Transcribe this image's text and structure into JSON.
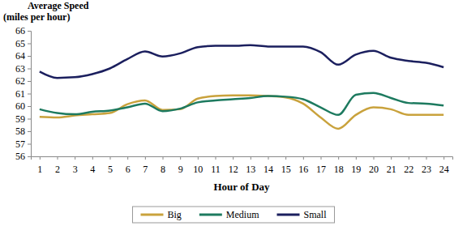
{
  "chart_data": {
    "type": "line",
    "x_label": "Hour of Day",
    "y_label": "Average Speed\n(miles per hour)",
    "categories": [
      "1",
      "2",
      "3",
      "4",
      "5",
      "6",
      "7",
      "8",
      "9",
      "10",
      "11",
      "12",
      "13",
      "14",
      "15",
      "16",
      "17",
      "18",
      "19",
      "20",
      "21",
      "22",
      "23",
      "24"
    ],
    "series": [
      {
        "name": "Big",
        "color": "#c9a23c",
        "values": [
          59.15,
          59.1,
          59.25,
          59.35,
          59.45,
          60.15,
          60.45,
          59.7,
          59.75,
          60.6,
          60.8,
          60.85,
          60.85,
          60.8,
          60.7,
          60.2,
          59.1,
          58.2,
          59.3,
          59.9,
          59.75,
          59.3,
          59.3,
          59.3
        ]
      },
      {
        "name": "Medium",
        "color": "#1d7a5f",
        "values": [
          59.75,
          59.45,
          59.35,
          59.55,
          59.65,
          59.9,
          60.2,
          59.6,
          59.8,
          60.3,
          60.45,
          60.55,
          60.65,
          60.8,
          60.75,
          60.55,
          59.9,
          59.3,
          60.9,
          61.05,
          60.65,
          60.25,
          60.2,
          60.05
        ]
      },
      {
        "name": "Small",
        "color": "#1b1f5e",
        "values": [
          62.75,
          62.25,
          62.3,
          62.55,
          63.0,
          63.75,
          64.35,
          63.95,
          64.2,
          64.7,
          64.8,
          64.8,
          64.85,
          64.75,
          64.75,
          64.75,
          64.3,
          63.3,
          64.1,
          64.4,
          63.85,
          63.6,
          63.45,
          63.1
        ]
      }
    ],
    "ylim": [
      56,
      66
    ],
    "yticks": [
      56,
      57,
      58,
      59,
      60,
      61,
      62,
      63,
      64,
      65,
      66
    ],
    "grid": false,
    "legend": "bottom"
  }
}
